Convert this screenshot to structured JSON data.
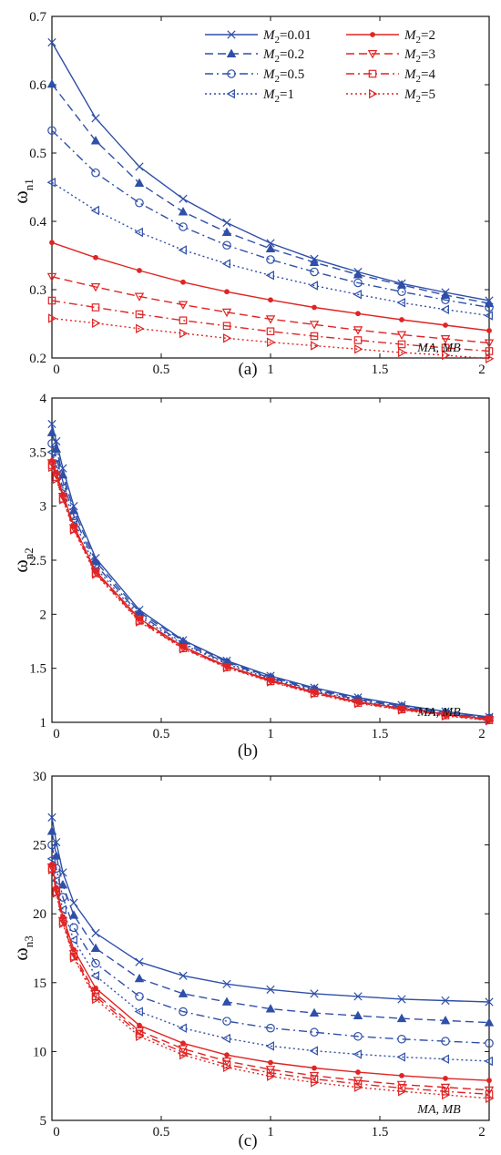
{
  "colors": {
    "blue": "#2f4fa8",
    "red": "#e02424",
    "axis": "#111111"
  },
  "legend": {
    "labels": [
      "M2=0.01",
      "M2=0.2",
      "M2=0.5",
      "M2=1",
      "M2=2",
      "M2=3",
      "M2=4",
      "M2=5"
    ]
  },
  "chart_data": [
    {
      "type": "line",
      "panel_label": "(a)",
      "ylabel": "ω",
      "ylabel_sub": "n1",
      "xlabel": "MA, MB",
      "xlim": [
        0,
        2
      ],
      "ylim": [
        0.2,
        0.7
      ],
      "xticks": [
        "0",
        "0.5",
        "1",
        "1.5",
        "2"
      ],
      "yticks": [
        "0.2",
        "0.3",
        "0.4",
        "0.5",
        "0.6",
        "0.7"
      ],
      "x": [
        0,
        0.2,
        0.4,
        0.6,
        0.8,
        1.0,
        1.2,
        1.4,
        1.6,
        1.8,
        2.0
      ],
      "series": [
        {
          "name": "M2=0.01",
          "color": "blue",
          "dash": "solid",
          "marker": "x",
          "values": [
            0.662,
            0.551,
            0.48,
            0.433,
            0.398,
            0.368,
            0.345,
            0.326,
            0.309,
            0.296,
            0.284
          ]
        },
        {
          "name": "M2=0.2",
          "color": "blue",
          "dash": "dashed",
          "marker": "triangle-up",
          "values": [
            0.601,
            0.518,
            0.456,
            0.414,
            0.384,
            0.36,
            0.34,
            0.322,
            0.307,
            0.292,
            0.28
          ]
        },
        {
          "name": "M2=0.5",
          "color": "blue",
          "dash": "dashdot",
          "marker": "circle",
          "values": [
            0.533,
            0.471,
            0.427,
            0.392,
            0.365,
            0.344,
            0.326,
            0.31,
            0.297,
            0.285,
            0.274
          ]
        },
        {
          "name": "M2=1",
          "color": "blue",
          "dash": "dotted",
          "marker": "triangle-left",
          "values": [
            0.457,
            0.416,
            0.384,
            0.358,
            0.338,
            0.321,
            0.306,
            0.293,
            0.281,
            0.271,
            0.262
          ]
        },
        {
          "name": "M2=2",
          "color": "red",
          "dash": "solid",
          "marker": "dot",
          "values": [
            0.369,
            0.347,
            0.328,
            0.311,
            0.297,
            0.285,
            0.274,
            0.265,
            0.256,
            0.248,
            0.24
          ]
        },
        {
          "name": "M2=3",
          "color": "red",
          "dash": "dashed",
          "marker": "triangle-down",
          "values": [
            0.319,
            0.304,
            0.29,
            0.278,
            0.267,
            0.257,
            0.249,
            0.241,
            0.234,
            0.228,
            0.222
          ]
        },
        {
          "name": "M2=4",
          "color": "red",
          "dash": "dashdot",
          "marker": "square",
          "values": [
            0.284,
            0.274,
            0.264,
            0.255,
            0.247,
            0.239,
            0.232,
            0.226,
            0.22,
            0.215,
            0.21
          ]
        },
        {
          "name": "M2=5",
          "color": "red",
          "dash": "dotted",
          "marker": "triangle-right",
          "values": [
            0.258,
            0.251,
            0.243,
            0.236,
            0.229,
            0.223,
            0.218,
            0.213,
            0.208,
            0.204,
            0.199
          ]
        }
      ]
    },
    {
      "type": "line",
      "panel_label": "(b)",
      "ylabel": "ω",
      "ylabel_sub": "n2",
      "xlabel": "MA, MB",
      "xlim": [
        0,
        2
      ],
      "ylim": [
        1,
        4
      ],
      "xticks": [
        "0",
        "0.5",
        "1",
        "1.5",
        "2"
      ],
      "yticks": [
        "1",
        "1.5",
        "2",
        "2.5",
        "3",
        "3.5",
        "4"
      ],
      "x": [
        0,
        0.02,
        0.05,
        0.1,
        0.2,
        0.4,
        0.6,
        0.8,
        1.0,
        1.2,
        1.4,
        1.6,
        1.8,
        2.0
      ],
      "series": [
        {
          "name": "M2=0.01",
          "color": "blue",
          "dash": "solid",
          "marker": "x",
          "values": [
            3.76,
            3.6,
            3.35,
            3.0,
            2.52,
            2.04,
            1.76,
            1.57,
            1.43,
            1.32,
            1.23,
            1.16,
            1.1,
            1.05
          ]
        },
        {
          "name": "M2=0.2",
          "color": "blue",
          "dash": "dashed",
          "marker": "triangle-up",
          "values": [
            3.68,
            3.53,
            3.29,
            2.96,
            2.49,
            2.02,
            1.75,
            1.56,
            1.42,
            1.31,
            1.22,
            1.15,
            1.09,
            1.045
          ]
        },
        {
          "name": "M2=0.5",
          "color": "blue",
          "dash": "dashdot",
          "marker": "circle",
          "values": [
            3.58,
            3.45,
            3.23,
            2.91,
            2.46,
            2.0,
            1.73,
            1.55,
            1.41,
            1.3,
            1.21,
            1.14,
            1.085,
            1.04
          ]
        },
        {
          "name": "M2=1",
          "color": "blue",
          "dash": "dotted",
          "marker": "triangle-left",
          "values": [
            3.5,
            3.38,
            3.17,
            2.87,
            2.43,
            1.98,
            1.72,
            1.54,
            1.4,
            1.29,
            1.2,
            1.135,
            1.08,
            1.035
          ]
        },
        {
          "name": "M2=2",
          "color": "red",
          "dash": "solid",
          "marker": "dot",
          "values": [
            3.42,
            3.31,
            3.11,
            2.82,
            2.4,
            1.96,
            1.7,
            1.52,
            1.39,
            1.28,
            1.19,
            1.13,
            1.075,
            1.03
          ]
        },
        {
          "name": "M2=3",
          "color": "red",
          "dash": "dashed",
          "marker": "triangle-down",
          "values": [
            3.4,
            3.29,
            3.09,
            2.8,
            2.39,
            1.95,
            1.69,
            1.515,
            1.385,
            1.275,
            1.185,
            1.125,
            1.07,
            1.025
          ]
        },
        {
          "name": "M2=4",
          "color": "red",
          "dash": "dashdot",
          "marker": "square",
          "values": [
            3.38,
            3.27,
            3.07,
            2.79,
            2.38,
            1.94,
            1.685,
            1.51,
            1.38,
            1.27,
            1.18,
            1.12,
            1.065,
            1.02
          ]
        },
        {
          "name": "M2=5",
          "color": "red",
          "dash": "dotted",
          "marker": "triangle-right",
          "values": [
            3.36,
            3.25,
            3.06,
            2.78,
            2.37,
            1.93,
            1.68,
            1.505,
            1.375,
            1.265,
            1.175,
            1.115,
            1.06,
            1.015
          ]
        }
      ]
    },
    {
      "type": "line",
      "panel_label": "(c)",
      "ylabel": "ω",
      "ylabel_sub": "n3",
      "xlabel": "MA, MB",
      "xlim": [
        0,
        2
      ],
      "ylim": [
        5,
        30
      ],
      "xticks": [
        "0",
        "0.5",
        "1",
        "1.5",
        "2"
      ],
      "yticks": [
        "5",
        "10",
        "15",
        "20",
        "25",
        "30"
      ],
      "x": [
        0,
        0.02,
        0.05,
        0.1,
        0.2,
        0.4,
        0.6,
        0.8,
        1.0,
        1.2,
        1.4,
        1.6,
        1.8,
        2.0
      ],
      "series": [
        {
          "name": "M2=0.01",
          "color": "blue",
          "dash": "solid",
          "marker": "x",
          "values": [
            27.0,
            25.2,
            23.0,
            20.8,
            18.6,
            16.5,
            15.5,
            14.9,
            14.5,
            14.2,
            14.0,
            13.8,
            13.7,
            13.6
          ]
        },
        {
          "name": "M2=0.2",
          "color": "blue",
          "dash": "dashed",
          "marker": "triangle-up",
          "values": [
            26.0,
            24.2,
            22.1,
            19.9,
            17.5,
            15.3,
            14.2,
            13.6,
            13.1,
            12.8,
            12.6,
            12.4,
            12.25,
            12.1
          ]
        },
        {
          "name": "M2=0.5",
          "color": "blue",
          "dash": "dashdot",
          "marker": "circle",
          "values": [
            25.0,
            23.3,
            21.2,
            19.0,
            16.4,
            14.0,
            12.9,
            12.2,
            11.7,
            11.4,
            11.1,
            10.9,
            10.75,
            10.6
          ]
        },
        {
          "name": "M2=1",
          "color": "blue",
          "dash": "dotted",
          "marker": "triangle-left",
          "values": [
            24.0,
            22.4,
            20.3,
            18.1,
            15.5,
            12.9,
            11.7,
            10.95,
            10.4,
            10.05,
            9.8,
            9.6,
            9.45,
            9.3
          ]
        },
        {
          "name": "M2=2",
          "color": "red",
          "dash": "solid",
          "marker": "dot",
          "values": [
            23.6,
            21.9,
            19.8,
            17.4,
            14.6,
            11.9,
            10.6,
            9.75,
            9.2,
            8.8,
            8.5,
            8.25,
            8.05,
            7.9
          ]
        },
        {
          "name": "M2=3",
          "color": "red",
          "dash": "dashed",
          "marker": "triangle-down",
          "values": [
            23.4,
            21.7,
            19.5,
            17.1,
            14.2,
            11.5,
            10.2,
            9.3,
            8.7,
            8.25,
            7.9,
            7.6,
            7.4,
            7.2
          ]
        },
        {
          "name": "M2=4",
          "color": "red",
          "dash": "dashdot",
          "marker": "square",
          "values": [
            23.3,
            21.6,
            19.4,
            16.9,
            14.0,
            11.3,
            9.95,
            9.05,
            8.45,
            8.0,
            7.65,
            7.35,
            7.1,
            6.9
          ]
        },
        {
          "name": "M2=5",
          "color": "red",
          "dash": "dotted",
          "marker": "triangle-right",
          "values": [
            23.2,
            21.5,
            19.3,
            16.8,
            13.8,
            11.1,
            9.75,
            8.85,
            8.2,
            7.75,
            7.4,
            7.1,
            6.85,
            6.6
          ]
        }
      ]
    }
  ]
}
